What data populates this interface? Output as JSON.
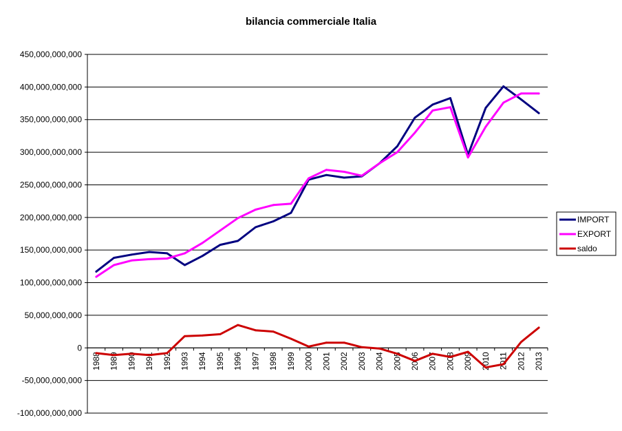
{
  "chart_data": {
    "type": "line",
    "title": "bilancia commerciale Italia",
    "xlabel": "",
    "ylabel": "",
    "ylim": [
      -100000000000,
      450000000000
    ],
    "ytick_step": 50000000000,
    "yticks": [
      "-100,000,000,000",
      "-50,000,000,000",
      "0",
      "50,000,000,000",
      "100,000,000,000",
      "150,000,000,000",
      "200,000,000,000",
      "250,000,000,000",
      "300,000,000,000",
      "350,000,000,000",
      "400,000,000,000",
      "450,000,000,000"
    ],
    "categories": [
      "1988",
      "1989",
      "1990",
      "1991",
      "1992",
      "1993",
      "1994",
      "1995",
      "1996",
      "1997",
      "1998",
      "1999",
      "2000",
      "2001",
      "2002",
      "2003",
      "2004",
      "2005",
      "2006",
      "2007",
      "2008",
      "2009",
      "2010",
      "2011",
      "2012",
      "2013"
    ],
    "grid": true,
    "legend_position": "right",
    "series": [
      {
        "name": "IMPORT",
        "color": "#000080",
        "values": [
          117000000000,
          138000000000,
          143000000000,
          147000000000,
          145000000000,
          127000000000,
          141000000000,
          158000000000,
          164000000000,
          185000000000,
          194000000000,
          207000000000,
          258000000000,
          265000000000,
          261000000000,
          263000000000,
          283000000000,
          309000000000,
          353000000000,
          373000000000,
          383000000000,
          296000000000,
          368000000000,
          401000000000,
          381000000000,
          360000000000
        ]
      },
      {
        "name": "EXPORT",
        "color": "#ff00ff",
        "values": [
          109000000000,
          127000000000,
          134000000000,
          136000000000,
          137000000000,
          145000000000,
          161000000000,
          180000000000,
          199000000000,
          212000000000,
          219000000000,
          221000000000,
          260000000000,
          273000000000,
          270000000000,
          264000000000,
          283000000000,
          300000000000,
          330000000000,
          364000000000,
          369000000000,
          292000000000,
          339000000000,
          376000000000,
          390000000000,
          390000000000
        ]
      },
      {
        "name": "saldo",
        "color": "#cc0000",
        "values": [
          -8000000000,
          -11000000000,
          -9000000000,
          -11000000000,
          -8000000000,
          18000000000,
          19000000000,
          21000000000,
          35000000000,
          27000000000,
          25000000000,
          14000000000,
          2000000000,
          8000000000,
          8000000000,
          1000000000,
          -1000000000,
          -9000000000,
          -20000000000,
          -9000000000,
          -14000000000,
          -6000000000,
          -30000000000,
          -25000000000,
          9000000000,
          31000000000
        ]
      }
    ]
  }
}
